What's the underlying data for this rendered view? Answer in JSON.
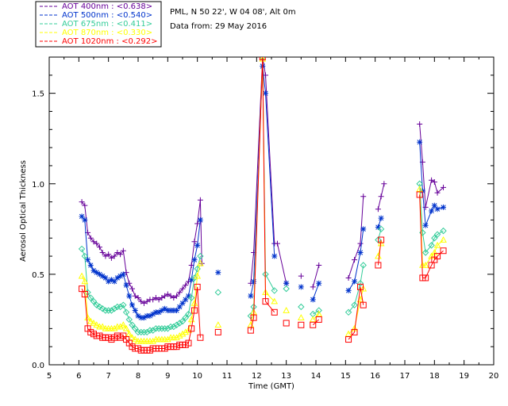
{
  "chart_data": {
    "type": "scatter",
    "xlabel": "Time (GMT)",
    "ylabel": "Aerosol Optical Thickness",
    "xlim": [
      5,
      20
    ],
    "ylim": [
      0,
      1.7
    ],
    "x_ticks": [
      "5",
      "6",
      "7",
      "8",
      "9",
      "10",
      "11",
      "12",
      "13",
      "14",
      "15",
      "16",
      "17",
      "18",
      "19",
      "20"
    ],
    "y_ticks": [
      "0.0",
      "0.5",
      "1.0",
      "1.5"
    ],
    "info": {
      "location": "PML, N 50 22', W 04 08', Alt 0m",
      "date_line": "Data from: 29 May 2016"
    },
    "legend_entries": [
      "AOT  400nm : <0.638>",
      "AOT  500nm : <0.540>",
      "AOT  675nm : <0.411>",
      "AOT  870nm : <0.330>",
      "AOT 1020nm : <0.292>"
    ],
    "series": [
      {
        "name": "AOT 400nm",
        "color": "#660099",
        "marker": "plus",
        "x": [
          6.1,
          6.2,
          6.3,
          6.4,
          6.5,
          6.6,
          6.7,
          6.8,
          6.9,
          7.0,
          7.1,
          7.2,
          7.3,
          7.4,
          7.5,
          7.6,
          7.7,
          7.8,
          7.9,
          8.0,
          8.1,
          8.2,
          8.3,
          8.4,
          8.5,
          8.6,
          8.7,
          8.8,
          8.9,
          9.0,
          9.1,
          9.2,
          9.3,
          9.4,
          9.5,
          9.6,
          9.7,
          9.8,
          9.9,
          10.0,
          10.1,
          10.15,
          11.8,
          11.9,
          12.2,
          12.3,
          12.6,
          12.7,
          13.0,
          13.5,
          13.9,
          14.1,
          15.1,
          15.3,
          15.5,
          15.6,
          16.1,
          16.2,
          16.3,
          17.5,
          17.6,
          17.7,
          17.9,
          18.0,
          18.1,
          18.3
        ],
        "y": [
          0.9,
          0.88,
          0.73,
          0.7,
          0.68,
          0.67,
          0.65,
          0.62,
          0.6,
          0.61,
          0.59,
          0.6,
          0.62,
          0.61,
          0.63,
          0.51,
          0.45,
          0.42,
          0.38,
          0.37,
          0.35,
          0.34,
          0.35,
          0.36,
          0.36,
          0.37,
          0.36,
          0.37,
          0.38,
          0.39,
          0.38,
          0.37,
          0.38,
          0.4,
          0.42,
          0.44,
          0.46,
          0.55,
          0.68,
          0.78,
          0.91,
          0.56,
          0.45,
          0.62,
          1.7,
          1.6,
          0.67,
          0.67,
          0.45,
          0.49,
          0.43,
          0.55,
          0.48,
          0.58,
          0.67,
          0.93,
          0.86,
          0.93,
          1.0,
          1.33,
          1.12,
          0.87,
          1.02,
          1.01,
          0.95,
          0.98
        ]
      },
      {
        "name": "AOT 500nm",
        "color": "#0033cc",
        "marker": "asterisk",
        "x": [
          6.1,
          6.2,
          6.3,
          6.4,
          6.5,
          6.6,
          6.7,
          6.8,
          6.9,
          7.0,
          7.1,
          7.2,
          7.3,
          7.4,
          7.5,
          7.6,
          7.7,
          7.8,
          7.9,
          8.0,
          8.1,
          8.2,
          8.3,
          8.4,
          8.5,
          8.6,
          8.7,
          8.8,
          8.9,
          9.0,
          9.1,
          9.2,
          9.3,
          9.4,
          9.5,
          9.6,
          9.7,
          9.8,
          9.9,
          10.0,
          10.1,
          10.7,
          11.8,
          11.9,
          12.2,
          12.3,
          12.6,
          13.0,
          13.5,
          13.9,
          14.1,
          15.1,
          15.3,
          15.5,
          15.6,
          16.1,
          16.2,
          17.5,
          17.6,
          17.7,
          17.9,
          18.0,
          18.1,
          18.3
        ],
        "y": [
          0.82,
          0.8,
          0.58,
          0.55,
          0.52,
          0.51,
          0.5,
          0.49,
          0.48,
          0.46,
          0.47,
          0.46,
          0.48,
          0.49,
          0.5,
          0.44,
          0.38,
          0.33,
          0.3,
          0.27,
          0.26,
          0.26,
          0.27,
          0.27,
          0.28,
          0.29,
          0.29,
          0.3,
          0.31,
          0.3,
          0.3,
          0.3,
          0.3,
          0.32,
          0.34,
          0.36,
          0.38,
          0.47,
          0.58,
          0.66,
          0.8,
          0.51,
          0.38,
          0.46,
          1.65,
          1.5,
          0.6,
          0.45,
          0.43,
          0.36,
          0.45,
          0.41,
          0.46,
          0.62,
          0.75,
          0.76,
          0.81,
          1.23,
          0.96,
          0.77,
          0.85,
          0.88,
          0.86,
          0.87
        ]
      },
      {
        "name": "AOT 675nm",
        "color": "#33cc99",
        "marker": "diamond",
        "x": [
          6.1,
          6.2,
          6.3,
          6.4,
          6.5,
          6.6,
          6.7,
          6.8,
          6.9,
          7.0,
          7.1,
          7.2,
          7.3,
          7.4,
          7.5,
          7.6,
          7.7,
          7.8,
          7.9,
          8.0,
          8.1,
          8.2,
          8.3,
          8.4,
          8.5,
          8.6,
          8.7,
          8.8,
          8.9,
          9.0,
          9.1,
          9.2,
          9.3,
          9.4,
          9.5,
          9.6,
          9.7,
          9.8,
          9.9,
          10.0,
          10.1,
          10.7,
          11.8,
          11.9,
          12.2,
          12.3,
          12.6,
          13.0,
          13.5,
          13.9,
          14.1,
          15.1,
          15.3,
          15.5,
          15.6,
          16.1,
          16.2,
          17.5,
          17.6,
          17.7,
          17.9,
          18.0,
          18.1,
          18.3
        ],
        "y": [
          0.64,
          0.6,
          0.4,
          0.37,
          0.35,
          0.33,
          0.32,
          0.31,
          0.3,
          0.3,
          0.3,
          0.31,
          0.32,
          0.32,
          0.33,
          0.29,
          0.25,
          0.22,
          0.2,
          0.18,
          0.18,
          0.18,
          0.18,
          0.19,
          0.19,
          0.2,
          0.2,
          0.2,
          0.2,
          0.2,
          0.21,
          0.21,
          0.22,
          0.23,
          0.24,
          0.26,
          0.28,
          0.37,
          0.48,
          0.53,
          0.6,
          0.4,
          0.27,
          0.32,
          1.7,
          0.5,
          0.41,
          0.42,
          0.32,
          0.28,
          0.3,
          0.29,
          0.33,
          0.45,
          0.55,
          0.69,
          0.75,
          1.0,
          0.73,
          0.62,
          0.66,
          0.7,
          0.72,
          0.74
        ]
      },
      {
        "name": "AOT 870nm",
        "color": "#ffff00",
        "marker": "triangle",
        "x": [
          6.1,
          6.2,
          6.3,
          6.4,
          6.5,
          6.6,
          6.7,
          6.8,
          6.9,
          7.0,
          7.1,
          7.2,
          7.3,
          7.4,
          7.5,
          7.6,
          7.7,
          7.8,
          7.9,
          8.0,
          8.1,
          8.2,
          8.3,
          8.4,
          8.5,
          8.6,
          8.7,
          8.8,
          8.9,
          9.0,
          9.1,
          9.2,
          9.3,
          9.4,
          9.5,
          9.6,
          9.7,
          9.8,
          9.9,
          10.0,
          10.1,
          10.7,
          11.8,
          11.9,
          12.2,
          12.3,
          12.6,
          13.0,
          13.5,
          13.9,
          14.1,
          15.1,
          15.3,
          15.5,
          15.6,
          16.1,
          16.2,
          17.5,
          17.6,
          17.7,
          17.9,
          18.0,
          18.1,
          18.3
        ],
        "y": [
          0.49,
          0.46,
          0.26,
          0.24,
          0.23,
          0.22,
          0.21,
          0.21,
          0.2,
          0.2,
          0.2,
          0.2,
          0.21,
          0.21,
          0.22,
          0.2,
          0.17,
          0.15,
          0.14,
          0.13,
          0.13,
          0.13,
          0.13,
          0.13,
          0.13,
          0.14,
          0.14,
          0.14,
          0.14,
          0.14,
          0.15,
          0.15,
          0.15,
          0.16,
          0.17,
          0.18,
          0.19,
          0.25,
          0.34,
          0.49,
          0.56,
          0.22,
          0.22,
          0.29,
          1.69,
          0.4,
          0.35,
          0.3,
          0.26,
          0.25,
          0.28,
          0.17,
          0.2,
          0.36,
          0.42,
          0.6,
          0.67,
          0.97,
          0.55,
          0.55,
          0.6,
          0.62,
          0.66,
          0.69
        ]
      },
      {
        "name": "AOT 1020nm",
        "color": "#ff0000",
        "marker": "square",
        "x": [
          6.1,
          6.2,
          6.3,
          6.4,
          6.5,
          6.6,
          6.7,
          6.8,
          6.9,
          7.0,
          7.1,
          7.2,
          7.3,
          7.4,
          7.5,
          7.6,
          7.7,
          7.8,
          7.9,
          8.0,
          8.1,
          8.2,
          8.3,
          8.4,
          8.5,
          8.6,
          8.7,
          8.8,
          8.9,
          9.0,
          9.1,
          9.2,
          9.3,
          9.4,
          9.5,
          9.6,
          9.7,
          9.8,
          9.9,
          10.0,
          10.1,
          10.7,
          11.8,
          11.9,
          12.2,
          12.3,
          12.6,
          13.0,
          13.5,
          13.9,
          14.1,
          15.1,
          15.3,
          15.5,
          15.6,
          16.1,
          16.2,
          17.5,
          17.6,
          17.7,
          17.9,
          18.0,
          18.1,
          18.3
        ],
        "y": [
          0.42,
          0.39,
          0.2,
          0.18,
          0.17,
          0.16,
          0.16,
          0.15,
          0.15,
          0.15,
          0.14,
          0.15,
          0.16,
          0.15,
          0.16,
          0.14,
          0.12,
          0.1,
          0.09,
          0.09,
          0.08,
          0.08,
          0.08,
          0.08,
          0.09,
          0.09,
          0.09,
          0.09,
          0.09,
          0.1,
          0.1,
          0.1,
          0.1,
          0.11,
          0.11,
          0.11,
          0.12,
          0.2,
          0.3,
          0.43,
          0.15,
          0.18,
          0.19,
          0.26,
          1.7,
          0.35,
          0.29,
          0.23,
          0.22,
          0.22,
          0.25,
          0.14,
          0.18,
          0.43,
          0.33,
          0.55,
          0.69,
          0.94,
          0.48,
          0.48,
          0.55,
          0.58,
          0.6,
          0.63
        ]
      }
    ]
  }
}
